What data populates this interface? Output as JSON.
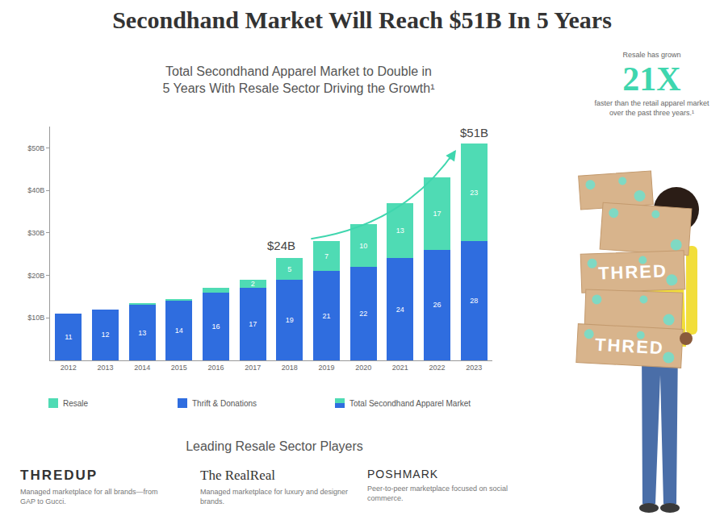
{
  "title": "Secondhand Market Will Reach $51B In 5 Years",
  "chart_data": {
    "type": "bar",
    "title": "Total Secondhand Apparel Market to Double in\n5 Years With Resale Sector Driving the Growth¹",
    "categories": [
      "2012",
      "2013",
      "2014",
      "2015",
      "2016",
      "2017",
      "2018",
      "2019",
      "2020",
      "2021",
      "2022",
      "2023"
    ],
    "series": [
      {
        "name": "Thrift & Donations",
        "color": "#2f6ddf",
        "values": [
          11,
          12,
          13,
          14,
          16,
          17,
          19,
          21,
          22,
          24,
          26,
          28
        ]
      },
      {
        "name": "Resale",
        "color": "#4fdbb4",
        "values": [
          0,
          0,
          0.5,
          0.5,
          1,
          2,
          5,
          7,
          10,
          13,
          17,
          23
        ],
        "value_labels": [
          null,
          null,
          null,
          null,
          null,
          "2",
          "5",
          "7",
          "10",
          "13",
          "17",
          "23"
        ]
      }
    ],
    "total_legend_label": "Total Secondhand Apparel Market",
    "annotations": [
      {
        "text": "$24B",
        "category": "2018",
        "value": 24
      },
      {
        "text": "$51B",
        "category": "2023",
        "value": 51
      }
    ],
    "ylim": [
      0,
      55
    ],
    "yticks": [
      {
        "value": 10,
        "label": "$10B"
      },
      {
        "value": 20,
        "label": "$20B"
      },
      {
        "value": 30,
        "label": "$30B"
      },
      {
        "value": 40,
        "label": "$40B"
      },
      {
        "value": 50,
        "label": "$50B"
      }
    ],
    "stacked": true,
    "data_labels": true,
    "grid": false,
    "legend": "bottom"
  },
  "callout": {
    "top": "Resale has grown",
    "big": "21X",
    "bottom": "faster than the retail apparel market over the past three years.¹",
    "color": "#3fd6ae"
  },
  "illustration": {
    "box_labels": [
      "THRED",
      "THRED"
    ]
  },
  "players_heading": "Leading Resale Sector Players",
  "players": [
    {
      "name": "THREDUP",
      "description": "Managed marketplace for all brands—from GAP to Gucci."
    },
    {
      "name": "The RealReal",
      "description": "Managed marketplace for luxury and designer brands."
    },
    {
      "name": "POSHMARK",
      "description": "Peer-to-peer marketplace focused on social commerce."
    }
  ]
}
